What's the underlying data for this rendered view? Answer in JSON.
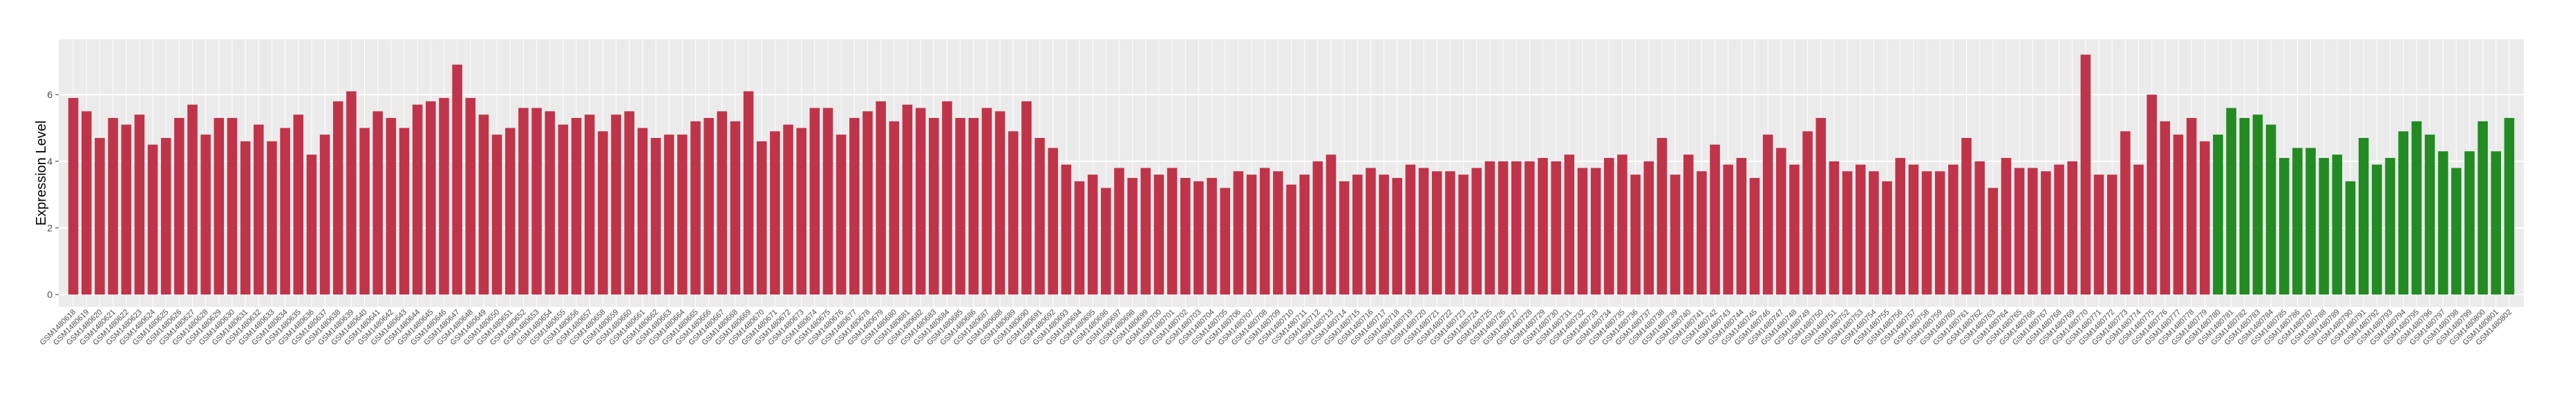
{
  "chart_data": {
    "type": "bar",
    "y_label": "Expression Level",
    "ylim": [
      -0.37,
      7.66
    ],
    "yticks": [
      0,
      2,
      4,
      6
    ],
    "grid": true,
    "categories": [
      "GSM1480618",
      "GSM1480619",
      "GSM1480620",
      "GSM1480621",
      "GSM1480622",
      "GSM1480623",
      "GSM1480624",
      "GSM1480625",
      "GSM1480626",
      "GSM1480627",
      "GSM1480628",
      "GSM1480629",
      "GSM1480630",
      "GSM1480631",
      "GSM1480632",
      "GSM1480633",
      "GSM1480634",
      "GSM1480635",
      "GSM1480636",
      "GSM1480637",
      "GSM1480638",
      "GSM1480639",
      "GSM1480640",
      "GSM1480641",
      "GSM1480642",
      "GSM1480643",
      "GSM1480644",
      "GSM1480645",
      "GSM1480646",
      "GSM1480647",
      "GSM1480648",
      "GSM1480649",
      "GSM1480650",
      "GSM1480651",
      "GSM1480652",
      "GSM1480653",
      "GSM1480654",
      "GSM1480655",
      "GSM1480656",
      "GSM1480657",
      "GSM1480658",
      "GSM1480659",
      "GSM1480660",
      "GSM1480661",
      "GSM1480662",
      "GSM1480663",
      "GSM1480664",
      "GSM1480665",
      "GSM1480666",
      "GSM1480667",
      "GSM1480668",
      "GSM1480669",
      "GSM1480670",
      "GSM1480671",
      "GSM1480672",
      "GSM1480673",
      "GSM1480674",
      "GSM1480675",
      "GSM1480676",
      "GSM1480677",
      "GSM1480678",
      "GSM1480679",
      "GSM1480680",
      "GSM1480681",
      "GSM1480682",
      "GSM1480683",
      "GSM1480684",
      "GSM1480685",
      "GSM1480686",
      "GSM1480687",
      "GSM1480688",
      "GSM1480689",
      "GSM1480690",
      "GSM1480691",
      "GSM1480692",
      "GSM1480693",
      "GSM1480694",
      "GSM1480695",
      "GSM1480696",
      "GSM1480697",
      "GSM1480698",
      "GSM1480699",
      "GSM1480700",
      "GSM1480701",
      "GSM1480702",
      "GSM1480703",
      "GSM1480704",
      "GSM1480705",
      "GSM1480706",
      "GSM1480707",
      "GSM1480708",
      "GSM1480709",
      "GSM1480710",
      "GSM1480711",
      "GSM1480712",
      "GSM1480713",
      "GSM1480714",
      "GSM1480715",
      "GSM1480716",
      "GSM1480717",
      "GSM1480718",
      "GSM1480719",
      "GSM1480720",
      "GSM1480721",
      "GSM1480722",
      "GSM1480723",
      "GSM1480724",
      "GSM1480725",
      "GSM1480726",
      "GSM1480727",
      "GSM1480728",
      "GSM1480729",
      "GSM1480730",
      "GSM1480731",
      "GSM1480732",
      "GSM1480733",
      "GSM1480734",
      "GSM1480735",
      "GSM1480736",
      "GSM1480737",
      "GSM1480738",
      "GSM1480739",
      "GSM1480740",
      "GSM1480741",
      "GSM1480742",
      "GSM1480743",
      "GSM1480744",
      "GSM1480745",
      "GSM1480746",
      "GSM1480747",
      "GSM1480748",
      "GSM1480749",
      "GSM1480750",
      "GSM1480751",
      "GSM1480752",
      "GSM1480753",
      "GSM1480754",
      "GSM1480755",
      "GSM1480756",
      "GSM1480757",
      "GSM1480758",
      "GSM1480759",
      "GSM1480760",
      "GSM1480761",
      "GSM1480762",
      "GSM1480763",
      "GSM1480764",
      "GSM1480765",
      "GSM1480766",
      "GSM1480767",
      "GSM1480768",
      "GSM1480769",
      "GSM1480770",
      "GSM1480771",
      "GSM1480772",
      "GSM1480773",
      "GSM1480774",
      "GSM1480775",
      "GSM1480776",
      "GSM1480777",
      "GSM1480778",
      "GSM1480779",
      "GSM1480780",
      "GSM1480781",
      "GSM1480782",
      "GSM1480783",
      "GSM1480784",
      "GSM1480785",
      "GSM1480786",
      "GSM1480787",
      "GSM1480788",
      "GSM1480789",
      "GSM1480790",
      "GSM1480791",
      "GSM1480792",
      "GSM1480793",
      "GSM1480794",
      "GSM1480795",
      "GSM1480796",
      "GSM1480797",
      "GSM1480798",
      "GSM1480799",
      "GSM1480800",
      "GSM1480801",
      "GSM1480802"
    ],
    "values": [
      5.9,
      5.5,
      4.7,
      5.3,
      5.1,
      5.4,
      4.5,
      4.7,
      5.3,
      5.7,
      4.8,
      5.3,
      5.3,
      4.6,
      5.1,
      4.6,
      5.0,
      5.4,
      4.2,
      4.8,
      5.8,
      6.1,
      5.0,
      5.5,
      5.3,
      5.0,
      5.7,
      5.8,
      5.9,
      6.9,
      5.9,
      5.4,
      4.8,
      5.0,
      5.6,
      5.6,
      5.5,
      5.1,
      5.3,
      5.4,
      4.9,
      5.4,
      5.5,
      5.0,
      4.7,
      4.8,
      4.8,
      5.2,
      5.3,
      5.5,
      5.2,
      6.1,
      4.6,
      4.9,
      5.1,
      5.0,
      5.6,
      5.6,
      4.8,
      5.3,
      5.5,
      5.8,
      5.2,
      5.7,
      5.6,
      5.3,
      5.8,
      5.3,
      5.3,
      5.6,
      5.5,
      4.9,
      5.8,
      4.7,
      4.4,
      3.9,
      3.4,
      3.6,
      3.2,
      3.8,
      3.5,
      3.8,
      3.6,
      3.8,
      3.5,
      3.4,
      3.5,
      3.2,
      3.7,
      3.6,
      3.8,
      3.7,
      3.3,
      3.6,
      4.0,
      4.2,
      3.4,
      3.6,
      3.8,
      3.6,
      3.5,
      3.9,
      3.8,
      3.7,
      3.7,
      3.6,
      3.8,
      4.0,
      4.0,
      4.0,
      4.0,
      4.1,
      4.0,
      4.2,
      3.8,
      3.8,
      4.1,
      4.2,
      3.6,
      4.0,
      4.7,
      3.6,
      4.2,
      3.7,
      4.5,
      3.9,
      4.1,
      3.5,
      4.8,
      4.4,
      3.9,
      4.9,
      5.3,
      4.0,
      3.7,
      3.9,
      3.7,
      3.4,
      4.1,
      3.9,
      3.7,
      3.7,
      3.9,
      4.7,
      4.0,
      3.2,
      4.1,
      3.8,
      3.8,
      3.7,
      3.9,
      4.0,
      7.2,
      3.6,
      3.6,
      4.9,
      3.9,
      6.0,
      5.2,
      4.8,
      5.3,
      4.6,
      4.8,
      5.6,
      5.3,
      5.4,
      5.1,
      4.1,
      4.4,
      4.4,
      4.1,
      4.2,
      3.4,
      4.7,
      3.9,
      4.1,
      4.9,
      5.2,
      4.8,
      4.3,
      3.8,
      4.3,
      5.2,
      4.3,
      5.3
    ],
    "colors": [
      "#c0344a",
      "#c0344a",
      "#c0344a",
      "#c0344a",
      "#c0344a",
      "#c0344a",
      "#c0344a",
      "#c0344a",
      "#c0344a",
      "#c0344a",
      "#c0344a",
      "#c0344a",
      "#c0344a",
      "#c0344a",
      "#c0344a",
      "#c0344a",
      "#c0344a",
      "#c0344a",
      "#c0344a",
      "#c0344a",
      "#c0344a",
      "#c0344a",
      "#c0344a",
      "#c0344a",
      "#c0344a",
      "#c0344a",
      "#c0344a",
      "#c0344a",
      "#c0344a",
      "#c0344a",
      "#c0344a",
      "#c0344a",
      "#c0344a",
      "#c0344a",
      "#c0344a",
      "#c0344a",
      "#c0344a",
      "#c0344a",
      "#c0344a",
      "#c0344a",
      "#c0344a",
      "#c0344a",
      "#c0344a",
      "#c0344a",
      "#c0344a",
      "#c0344a",
      "#c0344a",
      "#c0344a",
      "#c0344a",
      "#c0344a",
      "#c0344a",
      "#c0344a",
      "#c0344a",
      "#c0344a",
      "#c0344a",
      "#c0344a",
      "#c0344a",
      "#c0344a",
      "#c0344a",
      "#c0344a",
      "#c0344a",
      "#c0344a",
      "#c0344a",
      "#c0344a",
      "#c0344a",
      "#c0344a",
      "#c0344a",
      "#c0344a",
      "#c0344a",
      "#c0344a",
      "#c0344a",
      "#c0344a",
      "#c0344a",
      "#c0344a",
      "#c0344a",
      "#c0344a",
      "#c0344a",
      "#c0344a",
      "#c0344a",
      "#c0344a",
      "#c0344a",
      "#c0344a",
      "#c0344a",
      "#c0344a",
      "#c0344a",
      "#c0344a",
      "#c0344a",
      "#c0344a",
      "#c0344a",
      "#c0344a",
      "#c0344a",
      "#c0344a",
      "#c0344a",
      "#c0344a",
      "#c0344a",
      "#c0344a",
      "#c0344a",
      "#c0344a",
      "#c0344a",
      "#c0344a",
      "#c0344a",
      "#c0344a",
      "#c0344a",
      "#c0344a",
      "#c0344a",
      "#c0344a",
      "#c0344a",
      "#c0344a",
      "#c0344a",
      "#c0344a",
      "#c0344a",
      "#c0344a",
      "#c0344a",
      "#c0344a",
      "#c0344a",
      "#c0344a",
      "#c0344a",
      "#c0344a",
      "#c0344a",
      "#c0344a",
      "#c0344a",
      "#c0344a",
      "#c0344a",
      "#c0344a",
      "#c0344a",
      "#c0344a",
      "#c0344a",
      "#c0344a",
      "#c0344a",
      "#c0344a",
      "#c0344a",
      "#c0344a",
      "#c0344a",
      "#c0344a",
      "#c0344a",
      "#c0344a",
      "#c0344a",
      "#c0344a",
      "#c0344a",
      "#c0344a",
      "#c0344a",
      "#c0344a",
      "#c0344a",
      "#c0344a",
      "#c0344a",
      "#c0344a",
      "#c0344a",
      "#c0344a",
      "#c0344a",
      "#c0344a",
      "#c0344a",
      "#c0344a",
      "#c0344a",
      "#c0344a",
      "#c0344a",
      "#c0344a",
      "#c0344a",
      "#c0344a",
      "#c0344a",
      "#c0344a",
      "#c0344a",
      "#c0344a",
      "#228b22",
      "#228b22",
      "#228b22",
      "#228b22",
      "#228b22",
      "#228b22",
      "#228b22",
      "#228b22",
      "#228b22",
      "#228b22",
      "#228b22",
      "#228b22",
      "#228b22",
      "#228b22",
      "#228b22",
      "#228b22",
      "#228b22",
      "#228b22",
      "#228b22",
      "#228b22",
      "#228b22",
      "#228b22",
      "#228b22"
    ]
  }
}
